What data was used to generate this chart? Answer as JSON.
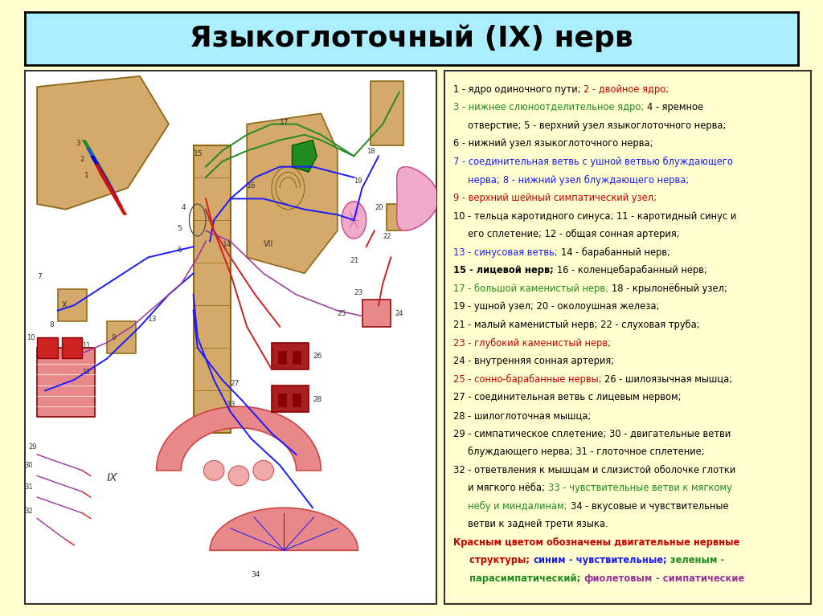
{
  "title": "Языкоглоточный (IX) нерв",
  "title_fontsize": 26,
  "title_color": "#000000",
  "title_bg": "#aaeeff",
  "slide_bg": "#ffffd0",
  "right_box_bg": "#ffffd0",
  "legend_lines": [
    [
      {
        "text": "1 - ядро одиночного пути; ",
        "color": "#000000",
        "bold": false
      },
      {
        "text": "2 - двойное ядро;",
        "color": "#cc0000",
        "bold": false
      }
    ],
    [
      {
        "text": "3 - нижнее слюноотделительное ядро; ",
        "color": "#228B22",
        "bold": false
      },
      {
        "text": "4 - яремное",
        "color": "#000000",
        "bold": false
      }
    ],
    [
      {
        "text": "     отверстие; 5 - верхний узел языкоглоточного нерва;",
        "color": "#000000",
        "bold": false
      }
    ],
    [
      {
        "text": "6 - нижний узел языкоглоточного нерва;",
        "color": "#000000",
        "bold": false
      }
    ],
    [
      {
        "text": "7 - соединительная ветвь с ушной ветвью блуждающего",
        "color": "#1a1aff",
        "bold": false
      }
    ],
    [
      {
        "text": "     нерва; ",
        "color": "#1a1aff",
        "bold": false
      },
      {
        "text": "8 - нижний узел блуждающего нерва;",
        "color": "#1a1aff",
        "bold": false
      }
    ],
    [
      {
        "text": "9 - верхний шейный симпатический узел;",
        "color": "#cc0000",
        "bold": false
      }
    ],
    [
      {
        "text": "10 - тельца каротидного синуса; 11 - каротидный синус и",
        "color": "#000000",
        "bold": false
      }
    ],
    [
      {
        "text": "     его сплетение; 12 - общая сонная артерия;",
        "color": "#000000",
        "bold": false
      }
    ],
    [
      {
        "text": "13 - синусовая ветвь; ",
        "color": "#1a1aff",
        "bold": false
      },
      {
        "text": "14 - барабанный нерв;",
        "color": "#000000",
        "bold": false
      }
    ],
    [
      {
        "text": "15 - лицевой нерв; ",
        "color": "#000000",
        "bold": true
      },
      {
        "text": "16 - коленцебарабанный нерв;",
        "color": "#000000",
        "bold": false
      }
    ],
    [
      {
        "text": "17 - большой каменистый нерв; ",
        "color": "#228B22",
        "bold": false
      },
      {
        "text": "18 - крылонёбный узел;",
        "color": "#000000",
        "bold": false
      }
    ],
    [
      {
        "text": "19 - ушной узел; 20 - околоушная железа;",
        "color": "#000000",
        "bold": false
      }
    ],
    [
      {
        "text": "21 - малый каменистый нерв; 22 - слуховая труба;",
        "color": "#000000",
        "bold": false
      }
    ],
    [
      {
        "text": "23 - глубокий каменистый нерв;",
        "color": "#cc0000",
        "bold": false
      }
    ],
    [
      {
        "text": "24 - внутренняя сонная артерия;",
        "color": "#000000",
        "bold": false
      }
    ],
    [
      {
        "text": "25 - сонно-барабанные нервы; ",
        "color": "#cc0000",
        "bold": false
      },
      {
        "text": "26 - шилоязычная мышца;",
        "color": "#000000",
        "bold": false
      }
    ],
    [
      {
        "text": "27 - соединительная ветвь с лицевым нервом;",
        "color": "#000000",
        "bold": false
      }
    ],
    [
      {
        "text": "28 - шилоглоточная мышца;",
        "color": "#000000",
        "bold": false
      }
    ],
    [
      {
        "text": "29 - симпатическое сплетение; 30 - двигательные ветви",
        "color": "#000000",
        "bold": false
      }
    ],
    [
      {
        "text": "     блуждающего нерва; 31 - глоточное сплетение;",
        "color": "#000000",
        "bold": false
      }
    ],
    [
      {
        "text": "32 - ответвления к мышцам и слизистой оболочке глотки",
        "color": "#000000",
        "bold": false
      }
    ],
    [
      {
        "text": "     и мягкого нёба; ",
        "color": "#000000",
        "bold": false
      },
      {
        "text": "33 - чувствительные ветви к мягкому",
        "color": "#228B22",
        "bold": false
      }
    ],
    [
      {
        "text": "     небу и миндалинам; ",
        "color": "#228B22",
        "bold": false
      },
      {
        "text": "34 - вкусовые и чувствительные",
        "color": "#000000",
        "bold": false
      }
    ],
    [
      {
        "text": "     ветви к задней трети языка.",
        "color": "#000000",
        "bold": false
      }
    ],
    [
      {
        "text": "Красным цветом обозначены двигательные нервные",
        "color": "#cc0000",
        "bold": true
      }
    ],
    [
      {
        "text": "     структуры; ",
        "color": "#cc0000",
        "bold": true
      },
      {
        "text": "синим",
        "color": "#1a1aff",
        "bold": true
      },
      {
        "text": " - чувствительные; ",
        "color": "#1a1aff",
        "bold": true
      },
      {
        "text": "зеленым -",
        "color": "#228B22",
        "bold": true
      }
    ],
    [
      {
        "text": "     парасимпатический; ",
        "color": "#228B22",
        "bold": true
      },
      {
        "text": "фиолетовым",
        "color": "#993399",
        "bold": true
      },
      {
        "text": " - симпатические",
        "color": "#993399",
        "bold": true
      }
    ]
  ]
}
